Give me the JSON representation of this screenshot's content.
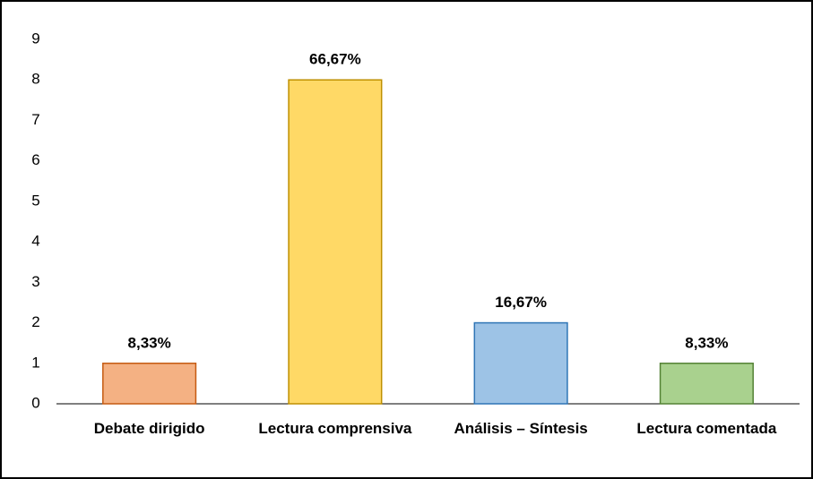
{
  "chart_data": {
    "type": "bar",
    "categories": [
      "Debate dirigido",
      "Lectura comprensiva",
      "Análisis – Síntesis",
      "Lectura comentada"
    ],
    "values": [
      1,
      8,
      2,
      1
    ],
    "annotations": [
      "8,33%",
      "66,67%",
      "16,67%",
      "8,33%"
    ],
    "colors": [
      "#f4b183",
      "#ffd966",
      "#9dc3e6",
      "#a9d18e"
    ],
    "edge_colors": [
      "#c55a11",
      "#bf9000",
      "#2e75b6",
      "#548235"
    ],
    "ylim": [
      0,
      9
    ],
    "yticks": [
      0,
      1,
      2,
      3,
      4,
      5,
      6,
      7,
      8,
      9
    ],
    "grid": false
  }
}
